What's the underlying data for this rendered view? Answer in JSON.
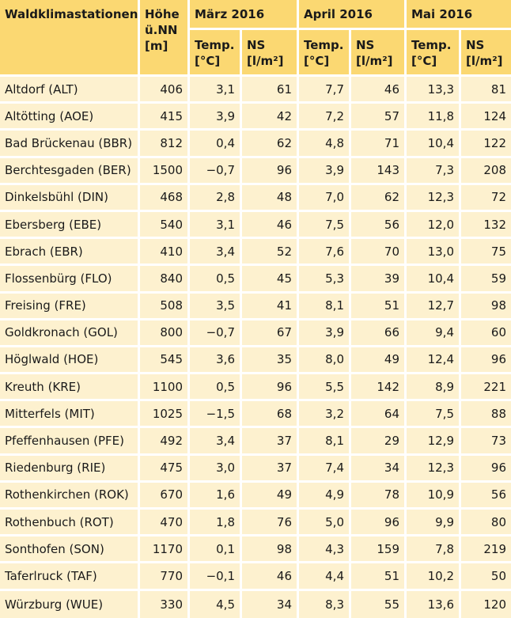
{
  "headers": {
    "station": "Waldklimastationen",
    "altitude": "Höhe ü.NN [m]",
    "months": [
      "März 2016",
      "April 2016",
      "Mai 2016"
    ],
    "temp": "Temp. [°C]",
    "ns": "NS [l/m²]"
  },
  "rows": [
    {
      "station": "Altdorf (ALT)",
      "height": "406",
      "m_t": "3,1",
      "m_ns": "61",
      "a_t": "7,7",
      "a_ns": "46",
      "y_t": "13,3",
      "y_ns": "81"
    },
    {
      "station": "Altötting (AOE)",
      "height": "415",
      "m_t": "3,9",
      "m_ns": "42",
      "a_t": "7,2",
      "a_ns": "57",
      "y_t": "11,8",
      "y_ns": "124"
    },
    {
      "station": "Bad Brückenau (BBR)",
      "height": "812",
      "m_t": "0,4",
      "m_ns": "62",
      "a_t": "4,8",
      "a_ns": "71",
      "y_t": "10,4",
      "y_ns": "122"
    },
    {
      "station": "Berchtesgaden (BER)",
      "height": "1500",
      "m_t": "−0,7",
      "m_ns": "96",
      "a_t": "3,9",
      "a_ns": "143",
      "y_t": "7,3",
      "y_ns": "208"
    },
    {
      "station": "Dinkelsbühl (DIN)",
      "height": "468",
      "m_t": "2,8",
      "m_ns": "48",
      "a_t": "7,0",
      "a_ns": "62",
      "y_t": "12,3",
      "y_ns": "72"
    },
    {
      "station": "Ebersberg (EBE)",
      "height": "540",
      "m_t": "3,1",
      "m_ns": "46",
      "a_t": "7,5",
      "a_ns": "56",
      "y_t": "12,0",
      "y_ns": "132"
    },
    {
      "station": "Ebrach (EBR)",
      "height": "410",
      "m_t": "3,4",
      "m_ns": "52",
      "a_t": "7,6",
      "a_ns": "70",
      "y_t": "13,0",
      "y_ns": "75"
    },
    {
      "station": "Flossenbürg (FLO)",
      "height": "840",
      "m_t": "0,5",
      "m_ns": "45",
      "a_t": "5,3",
      "a_ns": "39",
      "y_t": "10,4",
      "y_ns": "59"
    },
    {
      "station": "Freising (FRE)",
      "height": "508",
      "m_t": "3,5",
      "m_ns": "41",
      "a_t": "8,1",
      "a_ns": "51",
      "y_t": "12,7",
      "y_ns": "98"
    },
    {
      "station": "Goldkronach (GOL)",
      "height": "800",
      "m_t": "−0,7",
      "m_ns": "67",
      "a_t": "3,9",
      "a_ns": "66",
      "y_t": "9,4",
      "y_ns": "60"
    },
    {
      "station": "Höglwald (HOE)",
      "height": "545",
      "m_t": "3,6",
      "m_ns": "35",
      "a_t": "8,0",
      "a_ns": "49",
      "y_t": "12,4",
      "y_ns": "96"
    },
    {
      "station": "Kreuth (KRE)",
      "height": "1100",
      "m_t": "0,5",
      "m_ns": "96",
      "a_t": "5,5",
      "a_ns": "142",
      "y_t": "8,9",
      "y_ns": "221"
    },
    {
      "station": "Mitterfels (MIT)",
      "height": "1025",
      "m_t": "−1,5",
      "m_ns": "68",
      "a_t": "3,2",
      "a_ns": "64",
      "y_t": "7,5",
      "y_ns": "88"
    },
    {
      "station": "Pfeffenhausen (PFE)",
      "height": "492",
      "m_t": "3,4",
      "m_ns": "37",
      "a_t": "8,1",
      "a_ns": "29",
      "y_t": "12,9",
      "y_ns": "73"
    },
    {
      "station": "Riedenburg (RIE)",
      "height": "475",
      "m_t": "3,0",
      "m_ns": "37",
      "a_t": "7,4",
      "a_ns": "34",
      "y_t": "12,3",
      "y_ns": "96"
    },
    {
      "station": "Rothenkirchen (ROK)",
      "height": "670",
      "m_t": "1,6",
      "m_ns": "49",
      "a_t": "4,9",
      "a_ns": "78",
      "y_t": "10,9",
      "y_ns": "56"
    },
    {
      "station": "Rothenbuch (ROT)",
      "height": "470",
      "m_t": "1,8",
      "m_ns": "76",
      "a_t": "5,0",
      "a_ns": "96",
      "y_t": "9,9",
      "y_ns": "80"
    },
    {
      "station": "Sonthofen (SON)",
      "height": "1170",
      "m_t": "0,1",
      "m_ns": "98",
      "a_t": "4,3",
      "a_ns": "159",
      "y_t": "7,8",
      "y_ns": "219"
    },
    {
      "station": "Taferlruck (TAF)",
      "height": "770",
      "m_t": "−0,1",
      "m_ns": "46",
      "a_t": "4,4",
      "a_ns": "51",
      "y_t": "10,2",
      "y_ns": "50"
    },
    {
      "station": "Würzburg (WUE)",
      "height": "330",
      "m_t": "4,5",
      "m_ns": "34",
      "a_t": "8,3",
      "a_ns": "55",
      "y_t": "13,6",
      "y_ns": "120"
    }
  ]
}
